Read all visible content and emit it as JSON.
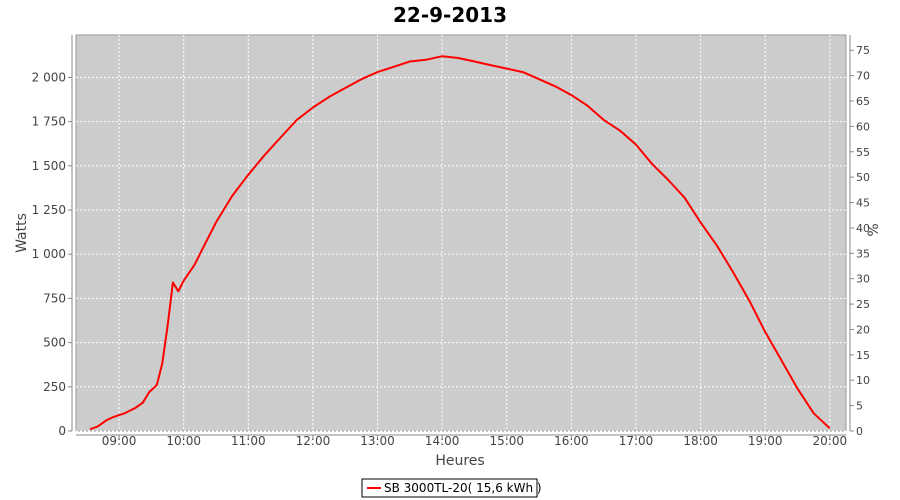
{
  "chart_data": {
    "type": "line",
    "title": "22-9-2013",
    "xlabel": "Heures",
    "ylabel": "Watts",
    "y2label": "%",
    "xlim": [
      "08:20",
      "20:15"
    ],
    "ylim": [
      0,
      2240
    ],
    "y2lim": [
      0,
      78
    ],
    "x_ticks": [
      "09:00",
      "10:00",
      "11:00",
      "12:00",
      "13:00",
      "14:00",
      "15:00",
      "16:00",
      "17:00",
      "18:00",
      "19:00",
      "20:00"
    ],
    "y_ticks": [
      "0",
      "250",
      "500",
      "750",
      "1 000",
      "1 250",
      "1 500",
      "1 750",
      "2 000"
    ],
    "y_tick_values": [
      0,
      250,
      500,
      750,
      1000,
      1250,
      1500,
      1750,
      2000
    ],
    "y2_ticks": [
      "0",
      "5",
      "10",
      "15",
      "20",
      "25",
      "30",
      "35",
      "40",
      "45",
      "50",
      "55",
      "60",
      "65",
      "70",
      "75"
    ],
    "y2_tick_values": [
      0,
      5,
      10,
      15,
      20,
      25,
      30,
      35,
      40,
      45,
      50,
      55,
      60,
      65,
      70,
      75
    ],
    "grid": true,
    "legend_position": "bottom-center",
    "colors": {
      "plot_bg": "#cccccc",
      "grid": "#ffffff",
      "series": "#ff0000"
    },
    "series": [
      {
        "name": "SB 3000TL-20( 15,6 kWh )",
        "x": [
          "08:33",
          "08:40",
          "08:48",
          "08:55",
          "09:05",
          "09:15",
          "09:22",
          "09:28",
          "09:35",
          "09:40",
          "09:45",
          "09:50",
          "09:55",
          "10:00",
          "10:10",
          "10:20",
          "10:30",
          "10:45",
          "11:00",
          "11:15",
          "11:30",
          "11:45",
          "12:00",
          "12:15",
          "12:30",
          "12:45",
          "13:00",
          "13:15",
          "13:30",
          "13:45",
          "14:00",
          "14:15",
          "14:30",
          "14:45",
          "15:00",
          "15:15",
          "15:30",
          "15:45",
          "16:00",
          "16:15",
          "16:30",
          "16:45",
          "17:00",
          "17:15",
          "17:30",
          "17:45",
          "18:00",
          "18:15",
          "18:30",
          "18:45",
          "19:00",
          "19:15",
          "19:30",
          "19:45",
          "20:00"
        ],
        "y": [
          10,
          25,
          60,
          80,
          100,
          130,
          160,
          220,
          260,
          380,
          590,
          840,
          790,
          850,
          940,
          1060,
          1180,
          1330,
          1450,
          1560,
          1660,
          1760,
          1830,
          1890,
          1940,
          1990,
          2030,
          2060,
          2090,
          2100,
          2120,
          2110,
          2090,
          2070,
          2050,
          2030,
          1990,
          1950,
          1900,
          1840,
          1760,
          1700,
          1620,
          1510,
          1420,
          1320,
          1180,
          1050,
          900,
          740,
          560,
          400,
          240,
          100,
          15
        ]
      }
    ]
  }
}
